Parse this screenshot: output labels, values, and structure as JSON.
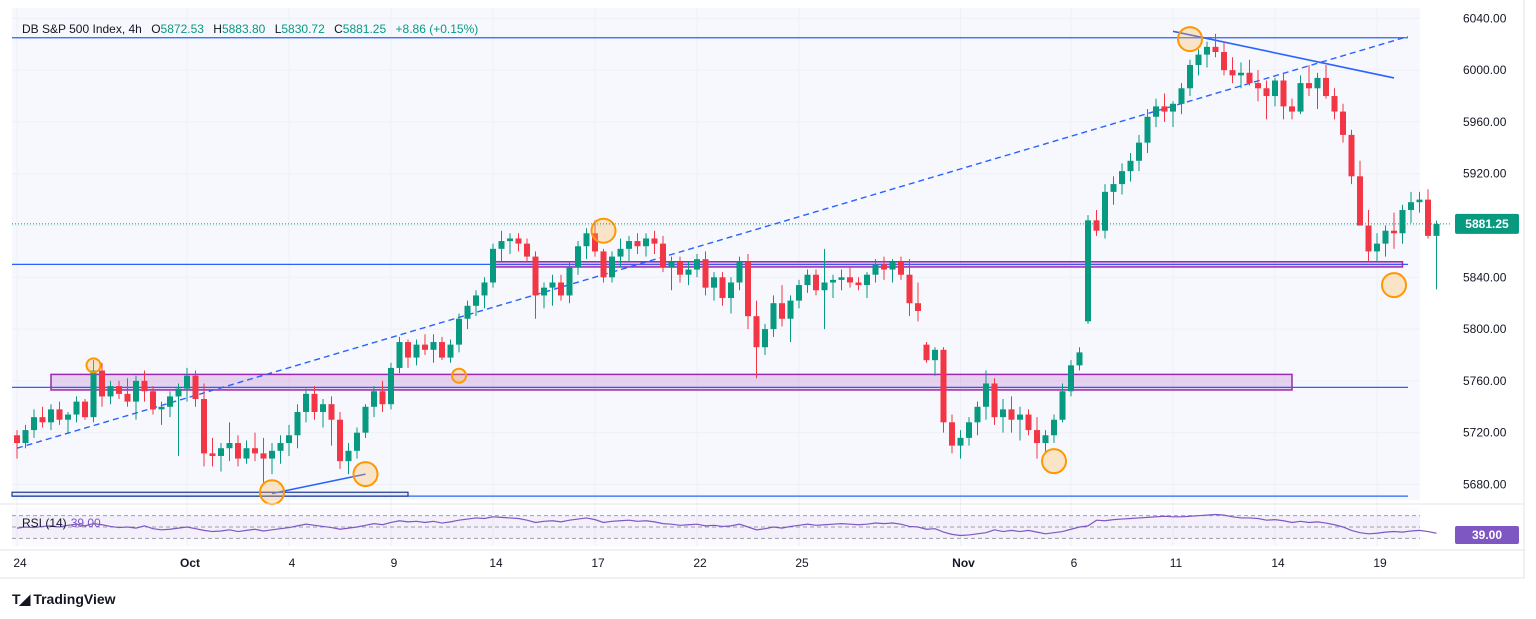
{
  "header": {
    "symbol": "DB S&P 500 Index, 4h",
    "open_label": "O",
    "open": "5872.53",
    "high_label": "H",
    "high": "5883.80",
    "low_label": "L",
    "low": "5830.72",
    "close_label": "C",
    "close": "5881.25",
    "change": "+8.86 (+0.15%)"
  },
  "price_badge": "5881.25",
  "rsi": {
    "label": "RSI (14)",
    "value": "39.00",
    "badge": "39.00"
  },
  "branding": {
    "logo_text": "TradingView"
  },
  "colors": {
    "up": "#089981",
    "down": "#f23645",
    "line": "#2962ff",
    "zone": "#9c27b0",
    "highlight": "#ff9800",
    "rsi": "#7e57c2"
  },
  "chart_data": {
    "type": "candlestick",
    "title": "DB S&P 500 Index, 4h",
    "y_ticks": [
      "6040.00",
      "6000.00",
      "5960.00",
      "5920.00",
      "5880.00",
      "5840.00",
      "5800.00",
      "5760.00",
      "5720.00",
      "5680.00"
    ],
    "ylim": [
      5668,
      6048
    ],
    "x_ticks": [
      {
        "label": "24",
        "bar": 0
      },
      {
        "label": "Oct",
        "bar": 20
      },
      {
        "label": "4",
        "bar": 32
      },
      {
        "label": "9",
        "bar": 44
      },
      {
        "label": "14",
        "bar": 56
      },
      {
        "label": "17",
        "bar": 68
      },
      {
        "label": "22",
        "bar": 80
      },
      {
        "label": "25",
        "bar": 92
      },
      {
        "label": "Nov",
        "bar": 111
      },
      {
        "label": "6",
        "bar": 124
      },
      {
        "label": "11",
        "bar": 136
      },
      {
        "label": "14",
        "bar": 148
      },
      {
        "label": "19",
        "bar": 160
      }
    ],
    "ohlc": [
      [
        5718,
        5722,
        5700,
        5712
      ],
      [
        5712,
        5726,
        5708,
        5722
      ],
      [
        5722,
        5738,
        5716,
        5732
      ],
      [
        5732,
        5740,
        5724,
        5728
      ],
      [
        5728,
        5742,
        5722,
        5738
      ],
      [
        5738,
        5744,
        5726,
        5730
      ],
      [
        5730,
        5736,
        5720,
        5734
      ],
      [
        5734,
        5748,
        5728,
        5744
      ],
      [
        5744,
        5746,
        5730,
        5732
      ],
      [
        5732,
        5776,
        5728,
        5768
      ],
      [
        5768,
        5774,
        5740,
        5748
      ],
      [
        5748,
        5760,
        5742,
        5756
      ],
      [
        5756,
        5760,
        5746,
        5750
      ],
      [
        5750,
        5762,
        5740,
        5744
      ],
      [
        5744,
        5764,
        5730,
        5760
      ],
      [
        5760,
        5768,
        5744,
        5752
      ],
      [
        5752,
        5756,
        5734,
        5738
      ],
      [
        5738,
        5744,
        5726,
        5740
      ],
      [
        5740,
        5752,
        5732,
        5748
      ],
      [
        5748,
        5758,
        5702,
        5754
      ],
      [
        5754,
        5770,
        5744,
        5764
      ],
      [
        5764,
        5768,
        5740,
        5746
      ],
      [
        5746,
        5758,
        5694,
        5704
      ],
      [
        5704,
        5716,
        5694,
        5702
      ],
      [
        5702,
        5712,
        5690,
        5708
      ],
      [
        5708,
        5728,
        5698,
        5712
      ],
      [
        5712,
        5718,
        5694,
        5700
      ],
      [
        5700,
        5714,
        5696,
        5708
      ],
      [
        5708,
        5720,
        5698,
        5704
      ],
      [
        5704,
        5716,
        5680,
        5700
      ],
      [
        5700,
        5712,
        5688,
        5706
      ],
      [
        5706,
        5718,
        5696,
        5712
      ],
      [
        5712,
        5726,
        5702,
        5718
      ],
      [
        5718,
        5742,
        5708,
        5736
      ],
      [
        5736,
        5754,
        5728,
        5750
      ],
      [
        5750,
        5756,
        5730,
        5736
      ],
      [
        5736,
        5746,
        5724,
        5742
      ],
      [
        5742,
        5748,
        5710,
        5730
      ],
      [
        5730,
        5736,
        5692,
        5698
      ],
      [
        5698,
        5712,
        5688,
        5706
      ],
      [
        5706,
        5724,
        5700,
        5720
      ],
      [
        5720,
        5742,
        5716,
        5740
      ],
      [
        5740,
        5756,
        5732,
        5752
      ],
      [
        5752,
        5760,
        5736,
        5742
      ],
      [
        5742,
        5774,
        5738,
        5770
      ],
      [
        5770,
        5794,
        5766,
        5790
      ],
      [
        5790,
        5792,
        5770,
        5778
      ],
      [
        5778,
        5792,
        5772,
        5788
      ],
      [
        5788,
        5796,
        5780,
        5784
      ],
      [
        5784,
        5796,
        5774,
        5790
      ],
      [
        5790,
        5794,
        5776,
        5778
      ],
      [
        5778,
        5792,
        5774,
        5788
      ],
      [
        5788,
        5812,
        5782,
        5808
      ],
      [
        5808,
        5822,
        5800,
        5818
      ],
      [
        5818,
        5830,
        5810,
        5826
      ],
      [
        5826,
        5840,
        5816,
        5836
      ],
      [
        5836,
        5866,
        5832,
        5862
      ],
      [
        5862,
        5876,
        5852,
        5868
      ],
      [
        5868,
        5874,
        5858,
        5870
      ],
      [
        5870,
        5874,
        5860,
        5866
      ],
      [
        5866,
        5870,
        5852,
        5856
      ],
      [
        5856,
        5860,
        5808,
        5826
      ],
      [
        5826,
        5836,
        5816,
        5832
      ],
      [
        5832,
        5842,
        5818,
        5836
      ],
      [
        5836,
        5842,
        5822,
        5826
      ],
      [
        5826,
        5852,
        5820,
        5848
      ],
      [
        5848,
        5868,
        5842,
        5864
      ],
      [
        5864,
        5878,
        5854,
        5874
      ],
      [
        5874,
        5884,
        5856,
        5860
      ],
      [
        5860,
        5862,
        5836,
        5840
      ],
      [
        5840,
        5860,
        5836,
        5856
      ],
      [
        5856,
        5870,
        5848,
        5862
      ],
      [
        5862,
        5872,
        5852,
        5868
      ],
      [
        5868,
        5874,
        5858,
        5864
      ],
      [
        5864,
        5874,
        5856,
        5870
      ],
      [
        5870,
        5876,
        5858,
        5866
      ],
      [
        5866,
        5872,
        5844,
        5848
      ],
      [
        5848,
        5856,
        5830,
        5852
      ],
      [
        5852,
        5856,
        5836,
        5842
      ],
      [
        5842,
        5852,
        5834,
        5846
      ],
      [
        5846,
        5858,
        5840,
        5854
      ],
      [
        5854,
        5860,
        5826,
        5832
      ],
      [
        5832,
        5844,
        5822,
        5840
      ],
      [
        5840,
        5844,
        5818,
        5824
      ],
      [
        5824,
        5840,
        5812,
        5836
      ],
      [
        5836,
        5856,
        5830,
        5852
      ],
      [
        5852,
        5858,
        5800,
        5810
      ],
      [
        5810,
        5822,
        5762,
        5786
      ],
      [
        5786,
        5804,
        5780,
        5800
      ],
      [
        5800,
        5826,
        5794,
        5820
      ],
      [
        5820,
        5834,
        5802,
        5808
      ],
      [
        5808,
        5826,
        5790,
        5822
      ],
      [
        5822,
        5838,
        5816,
        5834
      ],
      [
        5834,
        5846,
        5828,
        5842
      ],
      [
        5842,
        5846,
        5826,
        5830
      ],
      [
        5830,
        5862,
        5800,
        5836
      ],
      [
        5836,
        5842,
        5824,
        5838
      ],
      [
        5838,
        5846,
        5830,
        5840
      ],
      [
        5840,
        5848,
        5832,
        5836
      ],
      [
        5836,
        5840,
        5830,
        5834
      ],
      [
        5834,
        5844,
        5824,
        5842
      ],
      [
        5842,
        5854,
        5836,
        5850
      ],
      [
        5850,
        5856,
        5838,
        5846
      ],
      [
        5846,
        5854,
        5836,
        5852
      ],
      [
        5852,
        5856,
        5838,
        5842
      ],
      [
        5842,
        5854,
        5810,
        5820
      ],
      [
        5820,
        5836,
        5806,
        5814
      ],
      [
        5788,
        5790,
        5774,
        5776
      ],
      [
        5776,
        5786,
        5764,
        5784
      ],
      [
        5784,
        5786,
        5720,
        5728
      ],
      [
        5728,
        5734,
        5704,
        5710
      ],
      [
        5710,
        5722,
        5700,
        5716
      ],
      [
        5716,
        5732,
        5710,
        5728
      ],
      [
        5728,
        5744,
        5718,
        5740
      ],
      [
        5740,
        5768,
        5730,
        5758
      ],
      [
        5758,
        5762,
        5726,
        5732
      ],
      [
        5732,
        5746,
        5720,
        5738
      ],
      [
        5738,
        5748,
        5720,
        5730
      ],
      [
        5730,
        5740,
        5714,
        5734
      ],
      [
        5734,
        5738,
        5718,
        5722
      ],
      [
        5722,
        5732,
        5700,
        5712
      ],
      [
        5712,
        5722,
        5704,
        5718
      ],
      [
        5718,
        5734,
        5712,
        5730
      ],
      [
        5730,
        5758,
        5728,
        5752
      ],
      [
        5752,
        5776,
        5748,
        5772
      ],
      [
        5772,
        5786,
        5768,
        5782
      ],
      [
        5806,
        5888,
        5804,
        5884
      ],
      [
        5884,
        5892,
        5872,
        5876
      ],
      [
        5876,
        5912,
        5870,
        5906
      ],
      [
        5906,
        5918,
        5896,
        5912
      ],
      [
        5912,
        5928,
        5904,
        5922
      ],
      [
        5922,
        5936,
        5914,
        5930
      ],
      [
        5930,
        5950,
        5922,
        5944
      ],
      [
        5944,
        5970,
        5936,
        5964
      ],
      [
        5964,
        5978,
        5956,
        5972
      ],
      [
        5972,
        5982,
        5960,
        5968
      ],
      [
        5968,
        5976,
        5956,
        5974
      ],
      [
        5974,
        5990,
        5966,
        5986
      ],
      [
        5986,
        6008,
        5980,
        6004
      ],
      [
        6004,
        6016,
        5996,
        6012
      ],
      [
        6012,
        6022,
        6002,
        6018
      ],
      [
        6018,
        6028,
        6010,
        6014
      ],
      [
        6014,
        6022,
        5996,
        6000
      ],
      [
        6000,
        6010,
        5990,
        5996
      ],
      [
        5996,
        6006,
        5986,
        5998
      ],
      [
        5998,
        6008,
        5988,
        5990
      ],
      [
        5990,
        6000,
        5976,
        5986
      ],
      [
        5986,
        5992,
        5962,
        5980
      ],
      [
        5980,
        5994,
        5972,
        5992
      ],
      [
        5992,
        5998,
        5962,
        5972
      ],
      [
        5972,
        5978,
        5962,
        5968
      ],
      [
        5968,
        5996,
        5966,
        5990
      ],
      [
        5990,
        6004,
        5980,
        5986
      ],
      [
        5986,
        5998,
        5970,
        5994
      ],
      [
        5994,
        6004,
        5978,
        5980
      ],
      [
        5980,
        5986,
        5962,
        5968
      ],
      [
        5968,
        5974,
        5944,
        5950
      ],
      [
        5950,
        5954,
        5912,
        5918
      ],
      [
        5918,
        5930,
        5880,
        5880
      ],
      [
        5880,
        5892,
        5852,
        5860
      ],
      [
        5860,
        5874,
        5852,
        5866
      ],
      [
        5866,
        5880,
        5856,
        5876
      ],
      [
        5876,
        5890,
        5862,
        5874
      ],
      [
        5874,
        5896,
        5866,
        5892
      ],
      [
        5892,
        5906,
        5882,
        5898
      ],
      [
        5898,
        5906,
        5890,
        5900
      ],
      [
        5900,
        5908,
        5870,
        5872
      ],
      [
        5872,
        5883.8,
        5830.72,
        5881.25
      ]
    ],
    "current_price": 5881.25,
    "support_lines": [
      5850,
      5755,
      5671
    ],
    "resistance_lines": [
      6025
    ],
    "zones": [
      {
        "low": 5848,
        "high": 5852,
        "from_bar": 56,
        "to_bar": 163
      },
      {
        "low": 5753,
        "high": 5765,
        "from_bar": 4,
        "to_bar": 150
      }
    ],
    "dashed_trendline": {
      "from": [
        0,
        5708
      ],
      "to": [
        163,
        6026
      ]
    },
    "solid_trendlines": [
      {
        "from": [
          30,
          5673
        ],
        "to": [
          41,
          5688
        ]
      },
      {
        "from": [
          136,
          6030
        ],
        "to": [
          162,
          5994
        ]
      }
    ],
    "highlight_circles": [
      [
        9,
        5772
      ],
      [
        30,
        5674
      ],
      [
        41,
        5688
      ],
      [
        52,
        5764
      ],
      [
        69,
        5876
      ],
      [
        122,
        5698
      ],
      [
        138,
        6024
      ],
      [
        162,
        5834
      ]
    ],
    "rsi_values": [
      48,
      50,
      49,
      51,
      52,
      50,
      53,
      55,
      52,
      56,
      54,
      51,
      49,
      50,
      48,
      52,
      47,
      45,
      46,
      48,
      50,
      47,
      44,
      42,
      43,
      45,
      42,
      44,
      46,
      43,
      45,
      47,
      49,
      52,
      55,
      53,
      51,
      49,
      46,
      48,
      50,
      53,
      56,
      54,
      58,
      61,
      59,
      60,
      58,
      60,
      57,
      59,
      62,
      64,
      66,
      65,
      68,
      67,
      66,
      65,
      62,
      58,
      60,
      61,
      59,
      62,
      64,
      66,
      63,
      58,
      60,
      61,
      62,
      60,
      61,
      59,
      56,
      55,
      53,
      54,
      55,
      52,
      53,
      51,
      52,
      55,
      50,
      45,
      47,
      50,
      48,
      51,
      53,
      55,
      53,
      54,
      55,
      56,
      55,
      54,
      55,
      57,
      56,
      57,
      55,
      51,
      50,
      46,
      47,
      41,
      37,
      35,
      36,
      38,
      40,
      45,
      42,
      44,
      42,
      44,
      41,
      38,
      40,
      42,
      46,
      50,
      52,
      62,
      61,
      63,
      64,
      65,
      66,
      67,
      68,
      69,
      68,
      68,
      69,
      70,
      71,
      72,
      71,
      68,
      66,
      66,
      65,
      62,
      63,
      61,
      58,
      60,
      58,
      59,
      57,
      54,
      50,
      44,
      40,
      38,
      39,
      41,
      42,
      41,
      43,
      44,
      42,
      39
    ],
    "rsi_levels": [
      70,
      50,
      30
    ]
  }
}
